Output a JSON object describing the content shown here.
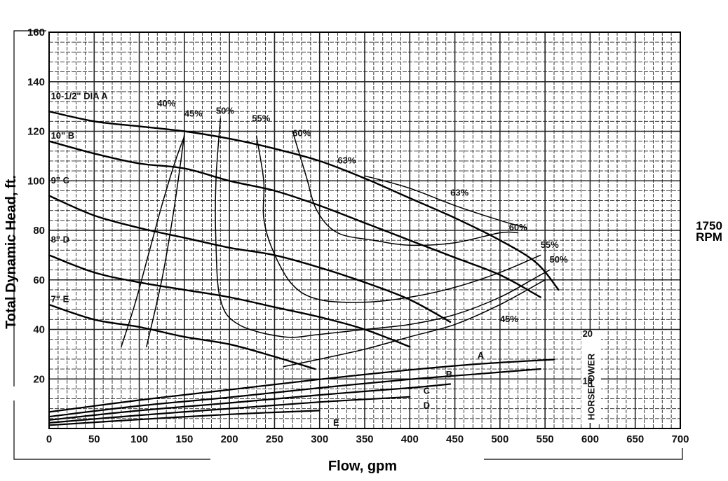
{
  "chart_data": {
    "type": "line",
    "ylabel": "Total Dynamic Head, ft.",
    "xlabel": "Flow, gpm",
    "speed_label": "1750 RPM",
    "xlim": [
      0,
      700
    ],
    "ylim": [
      0,
      160
    ],
    "x_ticks": [
      0,
      50,
      100,
      150,
      200,
      250,
      300,
      350,
      400,
      450,
      500,
      550,
      600,
      650,
      700
    ],
    "y_ticks": [
      20,
      40,
      60,
      80,
      100,
      120,
      140,
      160
    ],
    "grid": true,
    "head_curves": [
      {
        "label": "10-1/2\" DIA A",
        "points": [
          [
            0,
            128
          ],
          [
            50,
            124
          ],
          [
            100,
            122
          ],
          [
            150,
            120
          ],
          [
            200,
            117
          ],
          [
            250,
            113
          ],
          [
            300,
            108
          ],
          [
            350,
            101
          ],
          [
            400,
            93
          ],
          [
            450,
            85
          ],
          [
            500,
            76
          ],
          [
            540,
            67
          ],
          [
            565,
            56
          ]
        ]
      },
      {
        "label": "10\" B",
        "points": [
          [
            0,
            116
          ],
          [
            50,
            111
          ],
          [
            100,
            107
          ],
          [
            150,
            105
          ],
          [
            200,
            100
          ],
          [
            250,
            96
          ],
          [
            300,
            90
          ],
          [
            350,
            83
          ],
          [
            400,
            76
          ],
          [
            450,
            69
          ],
          [
            500,
            62
          ],
          [
            545,
            53
          ]
        ]
      },
      {
        "label": "9\" C",
        "points": [
          [
            0,
            94
          ],
          [
            50,
            86
          ],
          [
            100,
            81
          ],
          [
            150,
            77
          ],
          [
            200,
            73
          ],
          [
            250,
            70
          ],
          [
            300,
            65
          ],
          [
            350,
            59
          ],
          [
            400,
            52
          ],
          [
            445,
            43
          ]
        ]
      },
      {
        "label": "8\" D",
        "points": [
          [
            0,
            70
          ],
          [
            50,
            63
          ],
          [
            100,
            59
          ],
          [
            150,
            56
          ],
          [
            200,
            53
          ],
          [
            250,
            49
          ],
          [
            300,
            45
          ],
          [
            350,
            40
          ],
          [
            400,
            33
          ]
        ]
      },
      {
        "label": "7\" E",
        "points": [
          [
            0,
            50
          ],
          [
            50,
            44
          ],
          [
            100,
            41
          ],
          [
            150,
            37
          ],
          [
            200,
            34
          ],
          [
            250,
            29
          ],
          [
            295,
            24
          ]
        ]
      }
    ],
    "efficiency_curves": [
      {
        "label": "40%",
        "points": [
          [
            80,
            33
          ],
          [
            95,
            50
          ],
          [
            110,
            70
          ],
          [
            125,
            90
          ],
          [
            140,
            108
          ],
          [
            150,
            118
          ]
        ]
      },
      {
        "label": "45%",
        "points": [
          [
            150,
            119
          ],
          [
            145,
            105
          ],
          [
            137,
            85
          ],
          [
            125,
            60
          ],
          [
            108,
            33
          ]
        ]
      },
      {
        "label": "45%",
        "points": [
          [
            260,
            25
          ],
          [
            300,
            28
          ],
          [
            350,
            32
          ],
          [
            400,
            37
          ],
          [
            450,
            42
          ],
          [
            500,
            50
          ],
          [
            550,
            60
          ]
        ]
      },
      {
        "label": "50%",
        "points": [
          [
            190,
            125
          ],
          [
            185,
            100
          ],
          [
            185,
            75
          ],
          [
            190,
            52
          ],
          [
            210,
            42
          ],
          [
            260,
            37
          ],
          [
            300,
            38
          ],
          [
            350,
            40
          ],
          [
            400,
            42
          ],
          [
            450,
            46
          ],
          [
            500,
            53
          ],
          [
            540,
            61
          ],
          [
            555,
            64
          ]
        ]
      },
      {
        "label": "55%",
        "points": [
          [
            230,
            118
          ],
          [
            238,
            100
          ],
          [
            238,
            85
          ],
          [
            248,
            72
          ],
          [
            270,
            58
          ],
          [
            300,
            52
          ],
          [
            350,
            51
          ],
          [
            400,
            53
          ],
          [
            450,
            57
          ],
          [
            500,
            63
          ],
          [
            545,
            70
          ]
        ]
      },
      {
        "label": "60%",
        "points": [
          [
            270,
            120
          ],
          [
            285,
            102
          ],
          [
            297,
            88
          ],
          [
            320,
            79
          ],
          [
            360,
            76
          ],
          [
            400,
            74
          ],
          [
            450,
            75
          ],
          [
            500,
            79
          ],
          [
            520,
            79
          ]
        ]
      },
      {
        "label": "63%",
        "points": [
          [
            350,
            102
          ],
          [
            400,
            97
          ],
          [
            450,
            90
          ],
          [
            500,
            84
          ],
          [
            530,
            81
          ]
        ]
      }
    ],
    "efficiency_labels": [
      {
        "text": "40%",
        "x": 120,
        "y": 130
      },
      {
        "text": "45%",
        "x": 150,
        "y": 126
      },
      {
        "text": "50%",
        "x": 185,
        "y": 127
      },
      {
        "text": "55%",
        "x": 225,
        "y": 124
      },
      {
        "text": "60%",
        "x": 270,
        "y": 118
      },
      {
        "text": "63%",
        "x": 320,
        "y": 107
      },
      {
        "text": "63%",
        "x": 445,
        "y": 94
      },
      {
        "text": "60%",
        "x": 510,
        "y": 80
      },
      {
        "text": "55%",
        "x": 545,
        "y": 73
      },
      {
        "text": "50%",
        "x": 555,
        "y": 67
      },
      {
        "text": "45%",
        "x": 500,
        "y": 43
      }
    ],
    "curve_labels": [
      {
        "text": "10-1/2\" DIA A",
        "x": 2,
        "y": 133
      },
      {
        "text": "10\" B",
        "x": 2,
        "y": 117
      },
      {
        "text": "9\" C",
        "x": 2,
        "y": 99
      },
      {
        "text": "8\" D",
        "x": 2,
        "y": 75
      },
      {
        "text": "7\" E",
        "x": 2,
        "y": 51
      }
    ],
    "horsepower": {
      "label": "HORSEPOWER",
      "ticks": [
        10,
        20
      ],
      "curves": [
        {
          "label": "A",
          "points": [
            [
              0,
              3.5
            ],
            [
              100,
              6.0
            ],
            [
              200,
              8.2
            ],
            [
              300,
              10.4
            ],
            [
              400,
              12.4
            ],
            [
              480,
              13.7
            ],
            [
              560,
              14.6
            ]
          ]
        },
        {
          "label": "B",
          "points": [
            [
              0,
              2.5
            ],
            [
              100,
              4.8
            ],
            [
              200,
              6.6
            ],
            [
              300,
              8.6
            ],
            [
              400,
              10.4
            ],
            [
              480,
              11.6
            ],
            [
              545,
              12.6
            ]
          ]
        },
        {
          "label": "C",
          "points": [
            [
              0,
              1.8
            ],
            [
              100,
              3.8
            ],
            [
              200,
              5.4
            ],
            [
              300,
              7.1
            ],
            [
              400,
              8.6
            ],
            [
              445,
              9.4
            ]
          ]
        },
        {
          "label": "D",
          "points": [
            [
              0,
              1.2
            ],
            [
              100,
              2.8
            ],
            [
              200,
              4.2
            ],
            [
              300,
              5.6
            ],
            [
              400,
              6.7
            ]
          ]
        },
        {
          "label": "E",
          "points": [
            [
              0,
              0.7
            ],
            [
              100,
              1.9
            ],
            [
              200,
              3.0
            ],
            [
              300,
              3.8
            ]
          ]
        }
      ],
      "curve_labels": [
        {
          "text": "A",
          "x": 475,
          "y": 14.8
        },
        {
          "text": "B",
          "x": 440,
          "y": 10.8
        },
        {
          "text": "C",
          "x": 415,
          "y": 7.3
        },
        {
          "text": "D",
          "x": 415,
          "y": 4.2
        },
        {
          "text": "E",
          "x": 315,
          "y": 0.6
        }
      ]
    }
  }
}
